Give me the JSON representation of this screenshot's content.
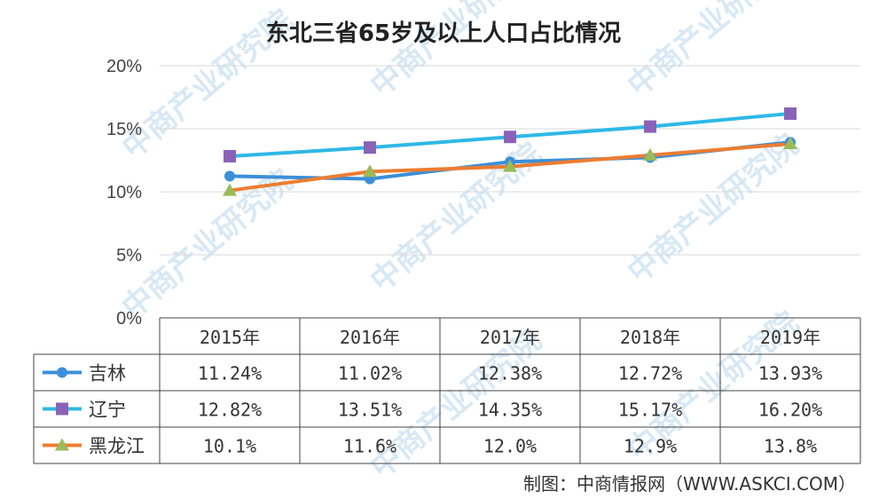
{
  "chart_data": {
    "type": "line",
    "title": "东北三省65岁及以上人口占比情况",
    "categories": [
      "2015年",
      "2016年",
      "2017年",
      "2018年",
      "2019年"
    ],
    "y_ticks": [
      "0%",
      "5%",
      "10%",
      "15%",
      "20%"
    ],
    "ylim": [
      0,
      20
    ],
    "grid": true,
    "legend": "data-table",
    "series": [
      {
        "name": "吉林",
        "values": [
          11.24,
          11.02,
          12.38,
          12.72,
          13.93
        ],
        "labels": [
          "11.24%",
          "11.02%",
          "12.38%",
          "12.72%",
          "13.93%"
        ],
        "color": "#3b8fd9",
        "marker": "circle"
      },
      {
        "name": "辽宁",
        "values": [
          12.82,
          13.51,
          14.35,
          15.17,
          16.2
        ],
        "labels": [
          "12.82%",
          "13.51%",
          "14.35%",
          "15.17%",
          "16.20%"
        ],
        "color": "#2fb8e6",
        "marker_color": "#8a63b8",
        "marker": "square"
      },
      {
        "name": "黑龙江",
        "values": [
          10.1,
          11.6,
          12.0,
          12.9,
          13.8
        ],
        "labels": [
          "10.1%",
          "11.6%",
          "12.0%",
          "12.9%",
          "13.8%"
        ],
        "color": "#ed7d31",
        "marker_color": "#9bbb59",
        "marker": "triangle"
      }
    ]
  },
  "source": "制图：中商情报网（WWW.ASKCI.COM）",
  "watermark": "中商产业研究院"
}
